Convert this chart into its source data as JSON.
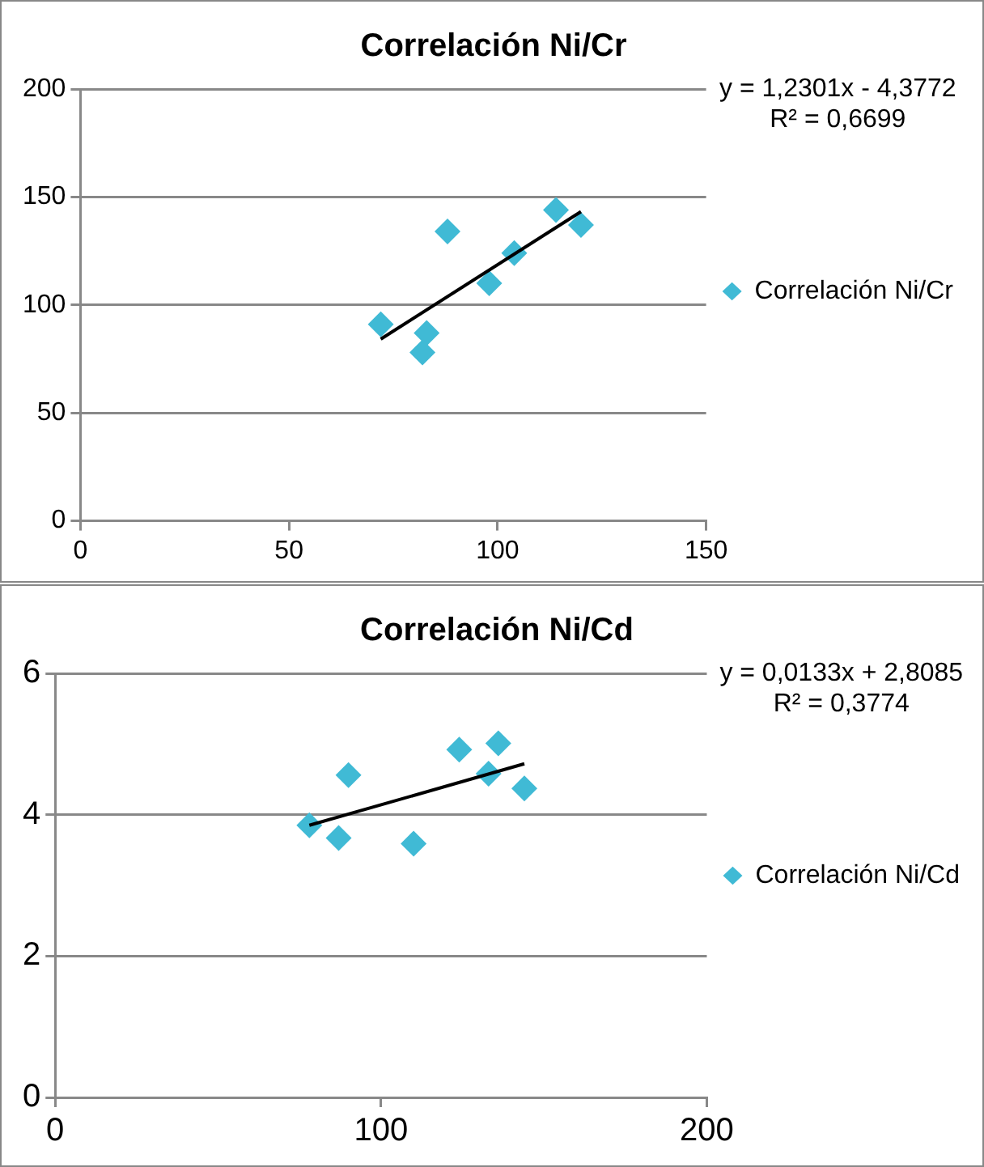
{
  "chart_data": [
    {
      "type": "scatter",
      "title": "Correlación Ni/Cr",
      "annotations": [
        "y = 1,2301x - 4,3772",
        "R² = 0,6699"
      ],
      "series": [
        {
          "name": "Correlación Ni/Cr",
          "color": "#40bad5",
          "x": [
            72,
            88,
            83,
            82,
            98,
            104,
            114,
            120
          ],
          "values": [
            91,
            134,
            87,
            78,
            110,
            124,
            144,
            137
          ]
        },
        {
          "type": "line",
          "color": "#000000",
          "marker": "none",
          "x": [
            72,
            120
          ],
          "values": [
            84.2,
            143.2
          ]
        }
      ],
      "xlim": [
        0,
        150
      ],
      "xticks": [
        0,
        50,
        100,
        150
      ],
      "ylim": [
        0,
        200
      ],
      "yticks": [
        0,
        50,
        100,
        150,
        200
      ],
      "grid": "y",
      "legend": "right",
      "marker": "diamond"
    },
    {
      "type": "scatter",
      "title": "Correlación Ni/Cd",
      "annotations": [
        "y = 0,0133x + 2,8085",
        "R² = 0,3774"
      ],
      "series": [
        {
          "name": "Correlación Ni/Cd",
          "color": "#40bad5",
          "x": [
            78,
            87,
            90,
            110,
            124,
            136,
            133,
            144
          ],
          "values": [
            3.85,
            3.67,
            4.56,
            3.59,
            4.92,
            5.01,
            4.58,
            4.37
          ]
        },
        {
          "type": "line",
          "color": "#000000",
          "marker": "none",
          "x": [
            78,
            144
          ],
          "values": [
            3.85,
            4.72
          ]
        }
      ],
      "xlim": [
        0,
        200
      ],
      "xticks": [
        0,
        100,
        200
      ],
      "ylim": [
        0,
        6
      ],
      "yticks": [
        0,
        2,
        4,
        6
      ],
      "grid": "y",
      "legend": "right",
      "marker": "diamond"
    }
  ]
}
